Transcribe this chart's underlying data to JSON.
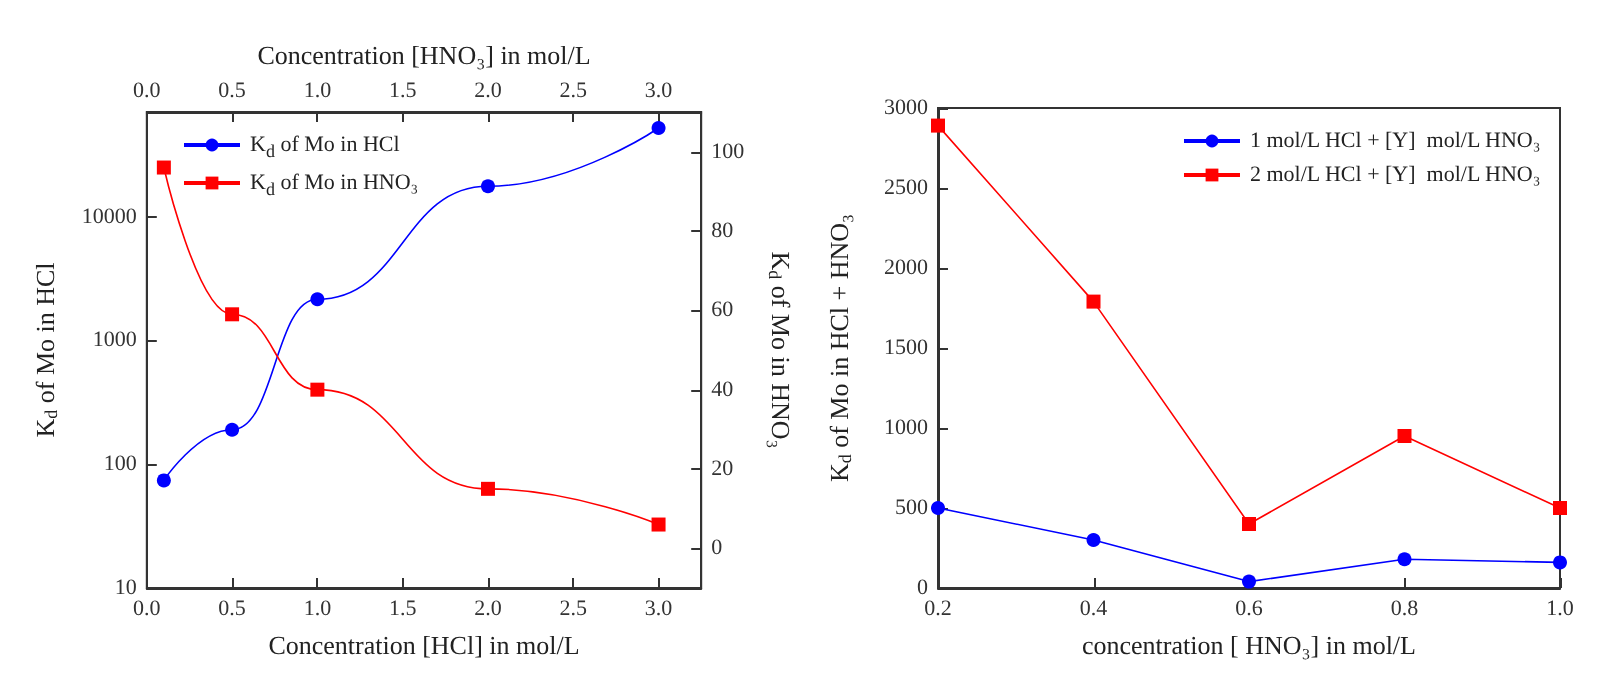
{
  "chart_data": [
    {
      "type": "line",
      "xlabel": "Concentration [HCl] in mol/L",
      "x2label": "Concentration [HNO₃] in mol/L",
      "ylabel": "K$_{d}$ of Mo in HCl",
      "y2label": "K$_{d}$ of Mo in HNO₃",
      "x": [
        0.1,
        0.5,
        1.0,
        2.0,
        3.0
      ],
      "series": [
        {
          "name": "K$_{d}$ of Mo in HCl",
          "color": "#0000ff",
          "marker": "circle",
          "values": [
            74,
            190,
            2150,
            17600,
            52000
          ]
        },
        {
          "name": "K$_{d}$ of Mo in HNO₃",
          "color": "#ff0000",
          "marker": "square",
          "axis": "y2",
          "values": [
            96,
            59,
            40,
            15,
            6
          ]
        }
      ],
      "log": "y",
      "xlim": [
        0,
        3.25
      ],
      "xticks": [
        {
          "value": 0,
          "label": "0.0"
        },
        0.5,
        {
          "value": 1,
          "label": "1.0"
        },
        1.5,
        {
          "value": 2,
          "label": "2.0"
        },
        2.5,
        {
          "value": 3,
          "label": "3.0"
        }
      ],
      "x2lim": [
        0,
        3.25
      ],
      "x2ticks": [
        {
          "value": 0,
          "label": "0.0"
        },
        0.5,
        {
          "value": 1,
          "label": "1.0"
        },
        1.5,
        {
          "value": 2,
          "label": "2.0"
        },
        2.5,
        {
          "value": 3,
          "label": "3.0"
        }
      ],
      "ylim": [
        10,
        70000
      ],
      "yticks": [
        10,
        100,
        1000,
        10000
      ],
      "y2lim": [
        -10,
        110
      ],
      "y2ticks": [
        0,
        20,
        40,
        60,
        80,
        100
      ],
      "grid": false,
      "legend": "top left"
    },
    {
      "type": "line",
      "xlabel": "concentration [ HNO₃] in mol/L",
      "ylabel": "K$_{d}$ of Mo in HCl + HNO₃",
      "x": [
        0.2,
        0.4,
        0.6,
        0.8,
        1.0
      ],
      "series": [
        {
          "name": "1 mol/L HCl + [Y]  mol/L HNO₃",
          "color": "#0000ff",
          "marker": "circle",
          "values": [
            500,
            300,
            40,
            180,
            160
          ]
        },
        {
          "name": "2 mol/L HCl + [Y]  mol/L HNO₃",
          "color": "#ff0000",
          "marker": "square",
          "values": [
            2890,
            1790,
            400,
            950,
            500
          ]
        }
      ],
      "xlim": [
        0.2,
        1.0
      ],
      "xticks": [
        0.2,
        0.4,
        0.6,
        0.8,
        {
          "value": 1,
          "label": "1.0"
        }
      ],
      "ylim": [
        0,
        3000
      ],
      "yticks": [
        0,
        500,
        1000,
        1500,
        2000,
        2500,
        3000
      ],
      "grid": false,
      "legend": "top right"
    }
  ]
}
